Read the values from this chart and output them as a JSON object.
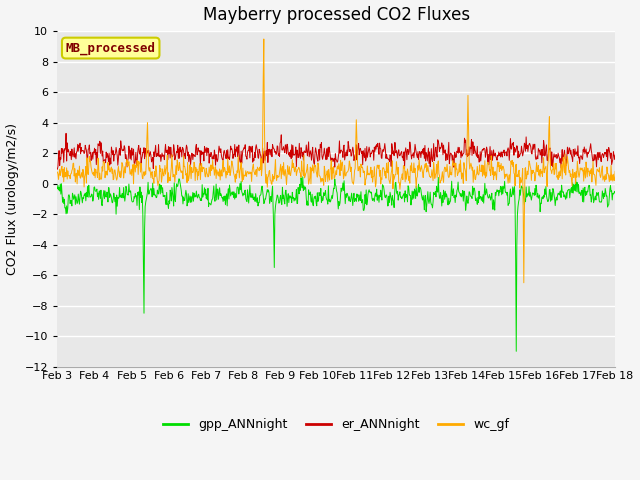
{
  "title": "Mayberry processed CO2 Fluxes",
  "ylabel": "CO2 Flux (urology/m2/s)",
  "ylim": [
    -12,
    10
  ],
  "yticks": [
    -12,
    -10,
    -8,
    -6,
    -4,
    -2,
    0,
    2,
    4,
    6,
    8,
    10
  ],
  "xtick_labels": [
    "Feb 3",
    "Feb 4",
    "Feb 5",
    "Feb 6",
    "Feb 7",
    "Feb 8",
    "Feb 9",
    "Feb 10",
    "Feb 11",
    "Feb 12",
    "Feb 13",
    "Feb 14",
    "Feb 15",
    "Feb 16",
    "Feb 17",
    "Feb 18"
  ],
  "color_gpp": "#00dd00",
  "color_er": "#cc0000",
  "color_wc": "#ffaa00",
  "legend_label": "MB_processed",
  "legend_label_color": "#800000",
  "legend_box_facecolor": "#ffff99",
  "legend_box_edgecolor": "#cccc00",
  "series_gpp": "gpp_ANNnight",
  "series_er": "er_ANNnight",
  "series_wc": "wc_gf",
  "background_color": "#e8e8e8",
  "fig_background": "#f5f5f5",
  "grid_color": "#ffffff",
  "title_fontsize": 12,
  "axis_fontsize": 9,
  "tick_fontsize": 8,
  "n_points": 960,
  "seed": 42
}
